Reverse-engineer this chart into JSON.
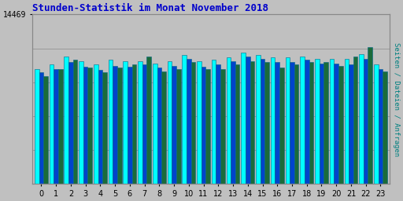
{
  "title": "Stunden-Statistik im Monat November 2018",
  "title_color": "#0000cc",
  "title_fontsize": 9,
  "ylabel_right": "Seiten / Dateien / Anfragen",
  "ylabel_right_color": "#008080",
  "background_color": "#c0c0c0",
  "plot_bg_color": "#c0c0c0",
  "grid_color": "#999999",
  "ymax": 14469,
  "ytick_label": "14469",
  "hours": [
    0,
    1,
    2,
    3,
    4,
    5,
    6,
    7,
    8,
    9,
    10,
    11,
    12,
    13,
    14,
    15,
    16,
    17,
    18,
    19,
    20,
    21,
    22,
    23
  ],
  "seiten": [
    9800,
    10200,
    10900,
    10500,
    10200,
    10600,
    10500,
    10500,
    10300,
    10500,
    11000,
    10500,
    10600,
    10800,
    11200,
    11000,
    10800,
    10800,
    10900,
    10700,
    10700,
    10700,
    11100,
    10200
  ],
  "dateien": [
    9500,
    9800,
    10400,
    10000,
    9700,
    10100,
    10000,
    10200,
    9900,
    10100,
    10700,
    10000,
    10200,
    10500,
    10900,
    10700,
    10400,
    10400,
    10600,
    10300,
    10300,
    10200,
    10700,
    9800
  ],
  "anfragen": [
    9200,
    9800,
    10600,
    9900,
    9500,
    9900,
    10200,
    10900,
    9600,
    9800,
    10400,
    9800,
    9800,
    10200,
    10500,
    10400,
    9900,
    10200,
    10400,
    10400,
    10100,
    10900,
    11700,
    9600
  ],
  "color_seiten": "#00ffff",
  "color_dateien": "#0044cc",
  "color_anfragen": "#1a6b3a",
  "bar_edge_color": "#006688",
  "bar_width": 0.3
}
